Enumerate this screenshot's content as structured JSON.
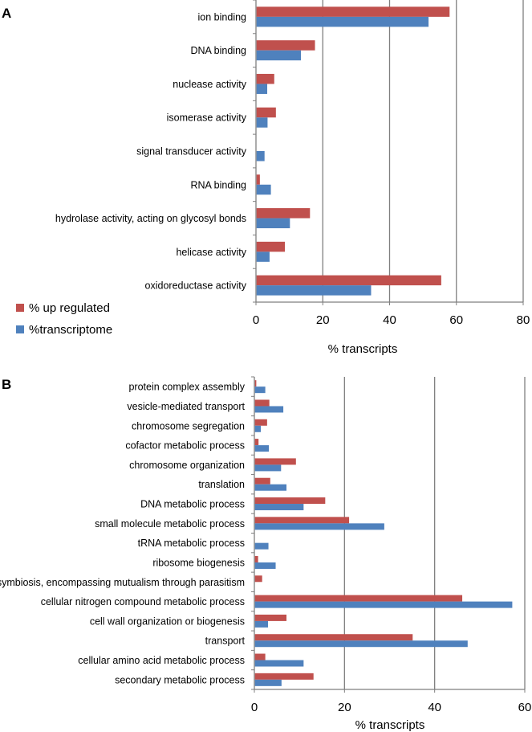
{
  "chart_data": [
    {
      "type": "bar",
      "orientation": "horizontal",
      "panel_label": "A",
      "categories": [
        "ion binding",
        "DNA binding",
        "nuclease activity",
        "isomerase activity",
        "signal transducer activity",
        "RNA binding",
        "hydrolase activity, acting on glycosyl bonds",
        "helicase activity",
        "oxidoreductase activity"
      ],
      "series": [
        {
          "name": "% up regulated",
          "color": "#c0504d",
          "values": [
            57.8,
            17.5,
            5.3,
            5.8,
            0,
            1.0,
            16.0,
            8.5,
            55.3
          ]
        },
        {
          "name": "%transcriptome",
          "color": "#4f81bd",
          "values": [
            51.5,
            13.3,
            3.2,
            3.3,
            2.4,
            4.3,
            10.0,
            3.9,
            34.3
          ]
        }
      ],
      "xlabel": "% transcripts",
      "xlim": [
        0,
        80
      ],
      "xticks": [
        "0",
        "20",
        "40",
        "60",
        "80"
      ],
      "legend": [
        "% up regulated",
        "%transcriptome"
      ],
      "legend_position": "bottom-left",
      "grid": "vertical"
    },
    {
      "type": "bar",
      "orientation": "horizontal",
      "panel_label": "B",
      "categories": [
        "protein complex assembly",
        "vesicle-mediated transport",
        "chromosome segregation",
        "cofactor metabolic process",
        "chromosome organization",
        "translation",
        "DNA metabolic process",
        "small molecule metabolic process",
        "tRNA metabolic process",
        "ribosome biogenesis",
        "symbiosis, encompassing mutualism through parasitism",
        "cellular nitrogen compound metabolic process",
        "cell wall organization or biogenesis",
        "transport",
        "cellular amino acid metabolic process",
        "secondary metabolic process"
      ],
      "series": [
        {
          "name": "% up regulated",
          "color": "#c0504d",
          "values": [
            0.3,
            3.2,
            2.7,
            0.8,
            9.1,
            3.4,
            15.6,
            20.9,
            0,
            0.7,
            1.6,
            46.0,
            7.0,
            35.0,
            2.3,
            13.0
          ]
        },
        {
          "name": "%transcriptome",
          "color": "#4f81bd",
          "values": [
            2.3,
            6.3,
            1.3,
            3.1,
            5.8,
            7.0,
            10.8,
            28.7,
            3.0,
            4.6,
            0,
            57.1,
            2.9,
            47.2,
            10.8,
            5.9
          ]
        }
      ],
      "xlabel": "% transcripts",
      "xlim": [
        0,
        60
      ],
      "xticks": [
        "0",
        "20",
        "40",
        "60"
      ],
      "grid": "vertical"
    }
  ]
}
